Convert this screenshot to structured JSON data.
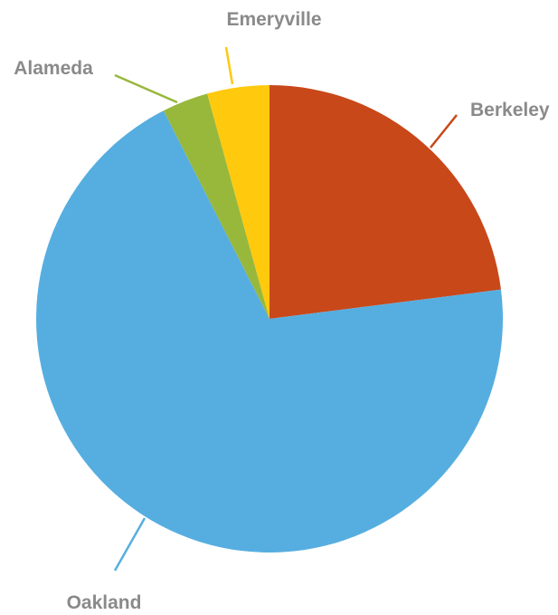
{
  "chart_data": {
    "type": "pie",
    "title": "",
    "start_angle_deg": 0,
    "direction": "clockwise",
    "legend": "none",
    "slices": [
      {
        "label": "Berkeley",
        "value": 23.0,
        "color": "#C8481A"
      },
      {
        "label": "Oakland",
        "value": 69.5,
        "color": "#56AEE0"
      },
      {
        "label": "Alameda",
        "value": 3.2,
        "color": "#98B83C"
      },
      {
        "label": "Emeryville",
        "value": 4.3,
        "color": "#FFC90E"
      }
    ]
  }
}
